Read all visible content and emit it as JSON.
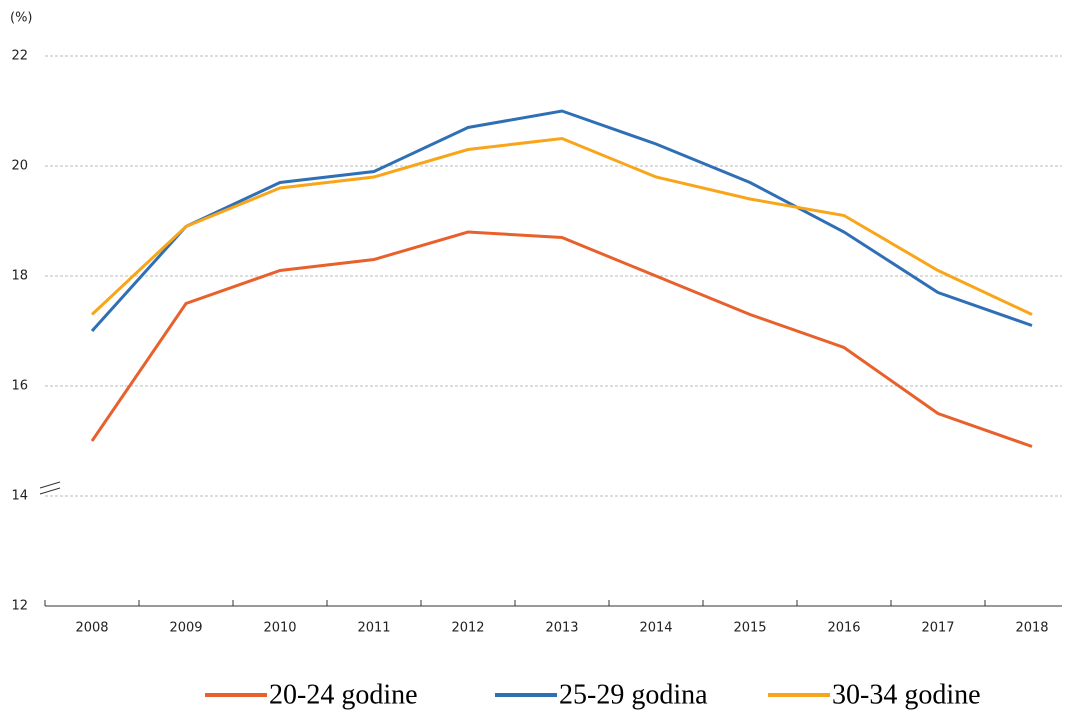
{
  "chart_data": {
    "type": "line",
    "y_axis_label": "(%)",
    "categories": [
      "2008",
      "2009",
      "2010",
      "2011",
      "2012",
      "2013",
      "2014",
      "2015",
      "2016",
      "2017",
      "2018"
    ],
    "series": [
      {
        "name": "20-24 godine",
        "color": "#e8612c",
        "values": [
          15.0,
          17.5,
          18.1,
          18.3,
          18.8,
          18.7,
          18.0,
          17.3,
          16.7,
          15.5,
          14.9
        ]
      },
      {
        "name": "25-29 godina",
        "color": "#2f6fb5",
        "values": [
          17.0,
          18.9,
          19.7,
          19.9,
          20.7,
          21.0,
          20.4,
          19.7,
          18.8,
          17.7,
          17.1
        ]
      },
      {
        "name": "30-34 godine",
        "color": "#f9a51a",
        "values": [
          17.3,
          18.9,
          19.6,
          19.8,
          20.3,
          20.5,
          19.8,
          19.4,
          19.1,
          18.1,
          17.3
        ]
      }
    ],
    "ylim": [
      12,
      22
    ],
    "yticks": [
      12,
      14,
      16,
      18,
      20,
      22
    ],
    "grid": true,
    "legend": "bottom"
  }
}
